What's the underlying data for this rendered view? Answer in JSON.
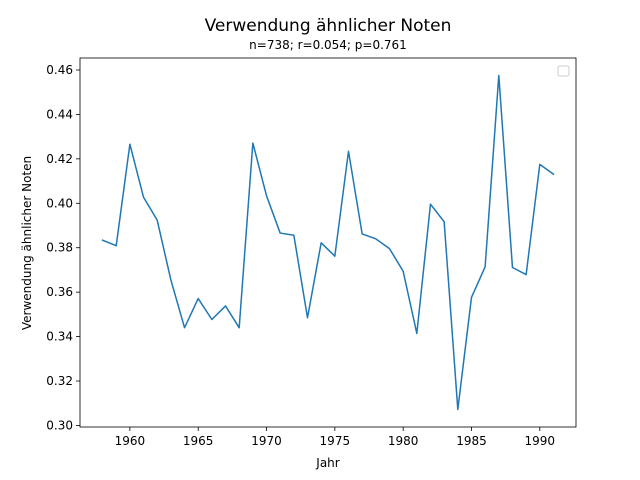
{
  "chart_data": {
    "type": "line",
    "title": "Verwendung ähnlicher Noten",
    "subtitle": "n=738; r=0.054; p=0.761",
    "xlabel": "Jahr",
    "ylabel": "Verwendung ähnlicher Noten",
    "xlim": [
      1956.35,
      1992.65
    ],
    "ylim": [
      0.2993,
      0.4654
    ],
    "xticks": [
      1960,
      1965,
      1970,
      1975,
      1980,
      1985,
      1990
    ],
    "yticks": [
      0.3,
      0.32,
      0.34,
      0.36,
      0.38,
      0.4,
      0.42,
      0.44,
      0.46
    ],
    "ytick_labels": [
      "0.30",
      "0.32",
      "0.34",
      "0.36",
      "0.38",
      "0.40",
      "0.42",
      "0.44",
      "0.46"
    ],
    "legend": "top-right",
    "grid": false,
    "color": "#1f77b4",
    "series": [
      {
        "x": [
          1958,
          1959,
          1960,
          1961,
          1962,
          1963,
          1964,
          1965,
          1966,
          1967,
          1968,
          1969,
          1970,
          1971,
          1972,
          1973,
          1974,
          1975,
          1976,
          1977,
          1978,
          1979,
          1980,
          1981,
          1982,
          1983,
          1984,
          1985,
          1986,
          1987,
          1988,
          1989,
          1990,
          1991
        ],
        "values": [
          0.3834,
          0.3809,
          0.4266,
          0.4027,
          0.3924,
          0.3655,
          0.344,
          0.3571,
          0.3477,
          0.3538,
          0.344,
          0.4271,
          0.4034,
          0.3866,
          0.3856,
          0.3485,
          0.3822,
          0.3762,
          0.4234,
          0.3862,
          0.384,
          0.3796,
          0.3694,
          0.3414,
          0.3996,
          0.3917,
          0.3072,
          0.3576,
          0.3714,
          0.4575,
          0.3711,
          0.3679,
          0.4175,
          0.4131
        ]
      }
    ]
  }
}
